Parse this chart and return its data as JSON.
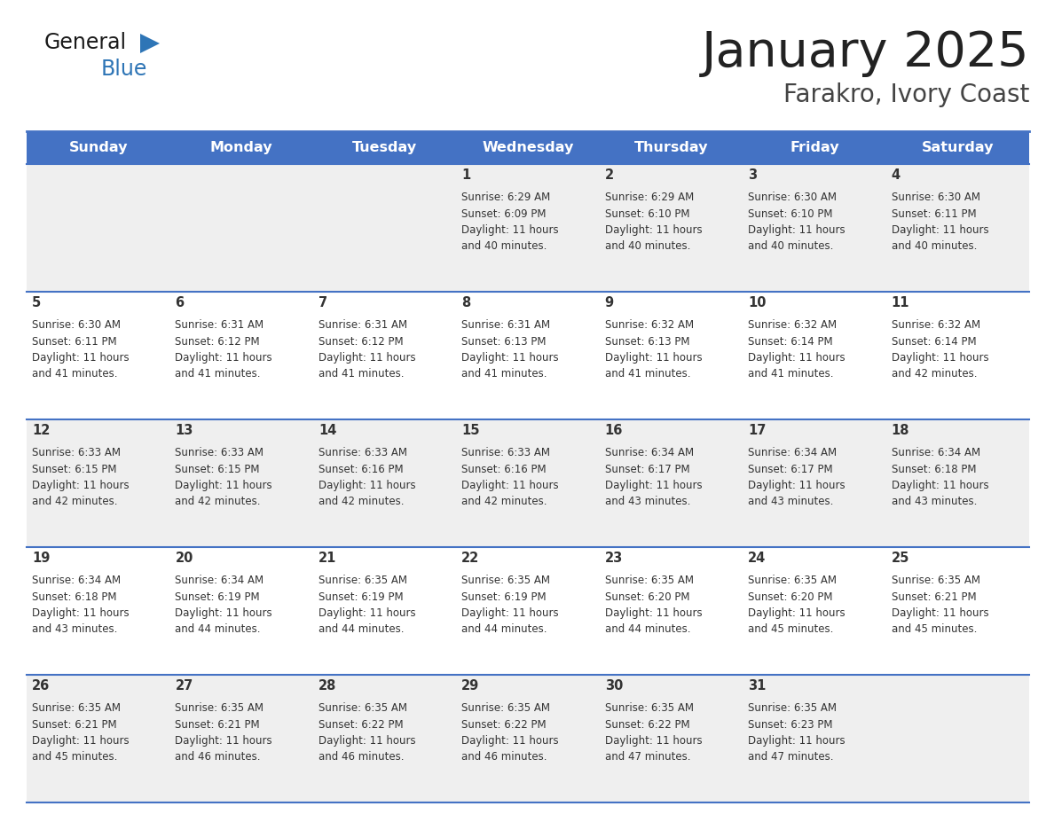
{
  "title": "January 2025",
  "subtitle": "Farakro, Ivory Coast",
  "header_bg": "#4472C4",
  "header_text_color": "#FFFFFF",
  "day_names": [
    "Sunday",
    "Monday",
    "Tuesday",
    "Wednesday",
    "Thursday",
    "Friday",
    "Saturday"
  ],
  "cell_bg_even": "#EFEFEF",
  "cell_bg_odd": "#FFFFFF",
  "row_line_color": "#4472C4",
  "text_color": "#333333",
  "title_color": "#222222",
  "subtitle_color": "#444444",
  "days": [
    {
      "date": 1,
      "col": 3,
      "row": 0,
      "sunrise": "6:29 AM",
      "sunset": "6:09 PM",
      "daylight_mins": "40"
    },
    {
      "date": 2,
      "col": 4,
      "row": 0,
      "sunrise": "6:29 AM",
      "sunset": "6:10 PM",
      "daylight_mins": "40"
    },
    {
      "date": 3,
      "col": 5,
      "row": 0,
      "sunrise": "6:30 AM",
      "sunset": "6:10 PM",
      "daylight_mins": "40"
    },
    {
      "date": 4,
      "col": 6,
      "row": 0,
      "sunrise": "6:30 AM",
      "sunset": "6:11 PM",
      "daylight_mins": "40"
    },
    {
      "date": 5,
      "col": 0,
      "row": 1,
      "sunrise": "6:30 AM",
      "sunset": "6:11 PM",
      "daylight_mins": "41"
    },
    {
      "date": 6,
      "col": 1,
      "row": 1,
      "sunrise": "6:31 AM",
      "sunset": "6:12 PM",
      "daylight_mins": "41"
    },
    {
      "date": 7,
      "col": 2,
      "row": 1,
      "sunrise": "6:31 AM",
      "sunset": "6:12 PM",
      "daylight_mins": "41"
    },
    {
      "date": 8,
      "col": 3,
      "row": 1,
      "sunrise": "6:31 AM",
      "sunset": "6:13 PM",
      "daylight_mins": "41"
    },
    {
      "date": 9,
      "col": 4,
      "row": 1,
      "sunrise": "6:32 AM",
      "sunset": "6:13 PM",
      "daylight_mins": "41"
    },
    {
      "date": 10,
      "col": 5,
      "row": 1,
      "sunrise": "6:32 AM",
      "sunset": "6:14 PM",
      "daylight_mins": "41"
    },
    {
      "date": 11,
      "col": 6,
      "row": 1,
      "sunrise": "6:32 AM",
      "sunset": "6:14 PM",
      "daylight_mins": "42"
    },
    {
      "date": 12,
      "col": 0,
      "row": 2,
      "sunrise": "6:33 AM",
      "sunset": "6:15 PM",
      "daylight_mins": "42"
    },
    {
      "date": 13,
      "col": 1,
      "row": 2,
      "sunrise": "6:33 AM",
      "sunset": "6:15 PM",
      "daylight_mins": "42"
    },
    {
      "date": 14,
      "col": 2,
      "row": 2,
      "sunrise": "6:33 AM",
      "sunset": "6:16 PM",
      "daylight_mins": "42"
    },
    {
      "date": 15,
      "col": 3,
      "row": 2,
      "sunrise": "6:33 AM",
      "sunset": "6:16 PM",
      "daylight_mins": "42"
    },
    {
      "date": 16,
      "col": 4,
      "row": 2,
      "sunrise": "6:34 AM",
      "sunset": "6:17 PM",
      "daylight_mins": "43"
    },
    {
      "date": 17,
      "col": 5,
      "row": 2,
      "sunrise": "6:34 AM",
      "sunset": "6:17 PM",
      "daylight_mins": "43"
    },
    {
      "date": 18,
      "col": 6,
      "row": 2,
      "sunrise": "6:34 AM",
      "sunset": "6:18 PM",
      "daylight_mins": "43"
    },
    {
      "date": 19,
      "col": 0,
      "row": 3,
      "sunrise": "6:34 AM",
      "sunset": "6:18 PM",
      "daylight_mins": "43"
    },
    {
      "date": 20,
      "col": 1,
      "row": 3,
      "sunrise": "6:34 AM",
      "sunset": "6:19 PM",
      "daylight_mins": "44"
    },
    {
      "date": 21,
      "col": 2,
      "row": 3,
      "sunrise": "6:35 AM",
      "sunset": "6:19 PM",
      "daylight_mins": "44"
    },
    {
      "date": 22,
      "col": 3,
      "row": 3,
      "sunrise": "6:35 AM",
      "sunset": "6:19 PM",
      "daylight_mins": "44"
    },
    {
      "date": 23,
      "col": 4,
      "row": 3,
      "sunrise": "6:35 AM",
      "sunset": "6:20 PM",
      "daylight_mins": "44"
    },
    {
      "date": 24,
      "col": 5,
      "row": 3,
      "sunrise": "6:35 AM",
      "sunset": "6:20 PM",
      "daylight_mins": "45"
    },
    {
      "date": 25,
      "col": 6,
      "row": 3,
      "sunrise": "6:35 AM",
      "sunset": "6:21 PM",
      "daylight_mins": "45"
    },
    {
      "date": 26,
      "col": 0,
      "row": 4,
      "sunrise": "6:35 AM",
      "sunset": "6:21 PM",
      "daylight_mins": "45"
    },
    {
      "date": 27,
      "col": 1,
      "row": 4,
      "sunrise": "6:35 AM",
      "sunset": "6:21 PM",
      "daylight_mins": "46"
    },
    {
      "date": 28,
      "col": 2,
      "row": 4,
      "sunrise": "6:35 AM",
      "sunset": "6:22 PM",
      "daylight_mins": "46"
    },
    {
      "date": 29,
      "col": 3,
      "row": 4,
      "sunrise": "6:35 AM",
      "sunset": "6:22 PM",
      "daylight_mins": "46"
    },
    {
      "date": 30,
      "col": 4,
      "row": 4,
      "sunrise": "6:35 AM",
      "sunset": "6:22 PM",
      "daylight_mins": "47"
    },
    {
      "date": 31,
      "col": 5,
      "row": 4,
      "sunrise": "6:35 AM",
      "sunset": "6:23 PM",
      "daylight_mins": "47"
    }
  ]
}
